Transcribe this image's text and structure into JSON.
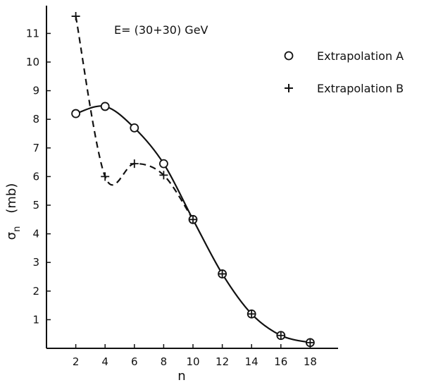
{
  "chart_data": {
    "type": "scatter",
    "annotation": "E= (30+30) GeV",
    "xlabel": "n",
    "ylabel": "σn (mb)",
    "ylabel_main": "σ",
    "ylabel_sub": "n",
    "ylabel_unit": "(mb)",
    "xlim": [
      0,
      20
    ],
    "ylim": [
      0,
      11.5
    ],
    "xticks": [
      2,
      4,
      6,
      8,
      10,
      12,
      14,
      16,
      18
    ],
    "xtick_labels": [
      "2",
      "4",
      "6",
      "8",
      "10",
      "12",
      "14",
      "16",
      "18"
    ],
    "yticks": [
      1,
      2,
      3,
      4,
      5,
      6,
      7,
      8,
      9,
      10,
      11
    ],
    "ytick_labels": [
      "1",
      "2",
      "3",
      "4",
      "5",
      "6",
      "7",
      "8",
      "9",
      "10",
      "11"
    ],
    "grid": false,
    "legend_position": "top-right",
    "series": [
      {
        "name": "Extrapolation A",
        "marker": "circle",
        "line": "solid",
        "x": [
          2,
          4,
          6,
          8,
          10,
          12,
          14,
          16,
          18
        ],
        "y": [
          8.2,
          8.45,
          7.7,
          6.45,
          4.5,
          2.6,
          1.2,
          0.45,
          0.2
        ]
      },
      {
        "name": "Extrapolation B",
        "marker": "plus",
        "line": "dashed",
        "x": [
          2,
          4,
          6,
          8,
          10,
          12,
          14,
          16,
          18
        ],
        "y": [
          11.6,
          6.0,
          6.45,
          6.05,
          4.5,
          2.6,
          1.2,
          0.45,
          0.2
        ]
      }
    ]
  }
}
